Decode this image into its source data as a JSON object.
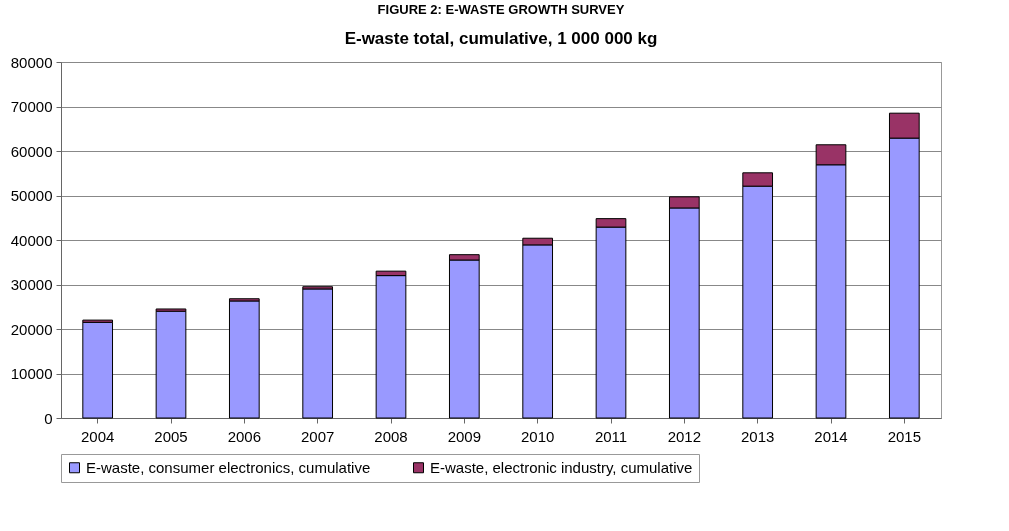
{
  "chart_data": {
    "type": "bar",
    "title": "FIGURE 2: E-WASTE GROWTH SURVEY",
    "subtitle": "E-waste total, cumulative, 1 000 000 kg",
    "categories": [
      "2004",
      "2005",
      "2006",
      "2007",
      "2008",
      "2009",
      "2010",
      "2011",
      "2012",
      "2013",
      "2014",
      "2015"
    ],
    "stacked": true,
    "series": [
      {
        "name": "E-waste, consumer electronics, cumulative",
        "color": "#9999ff",
        "values": [
          21500,
          24000,
          26300,
          29000,
          32000,
          35500,
          38900,
          42900,
          47200,
          52100,
          56900,
          62900
        ]
      },
      {
        "name": "E-waste, electronic industry, cumulative",
        "color": "#993366",
        "values": [
          500,
          500,
          500,
          500,
          1000,
          1200,
          1500,
          1900,
          2500,
          3000,
          4500,
          5600
        ]
      }
    ],
    "ylim": [
      0,
      80000
    ],
    "yticks": [
      0,
      10000,
      20000,
      30000,
      40000,
      50000,
      60000,
      70000,
      80000
    ],
    "grid": "y",
    "legend": "bottom"
  }
}
